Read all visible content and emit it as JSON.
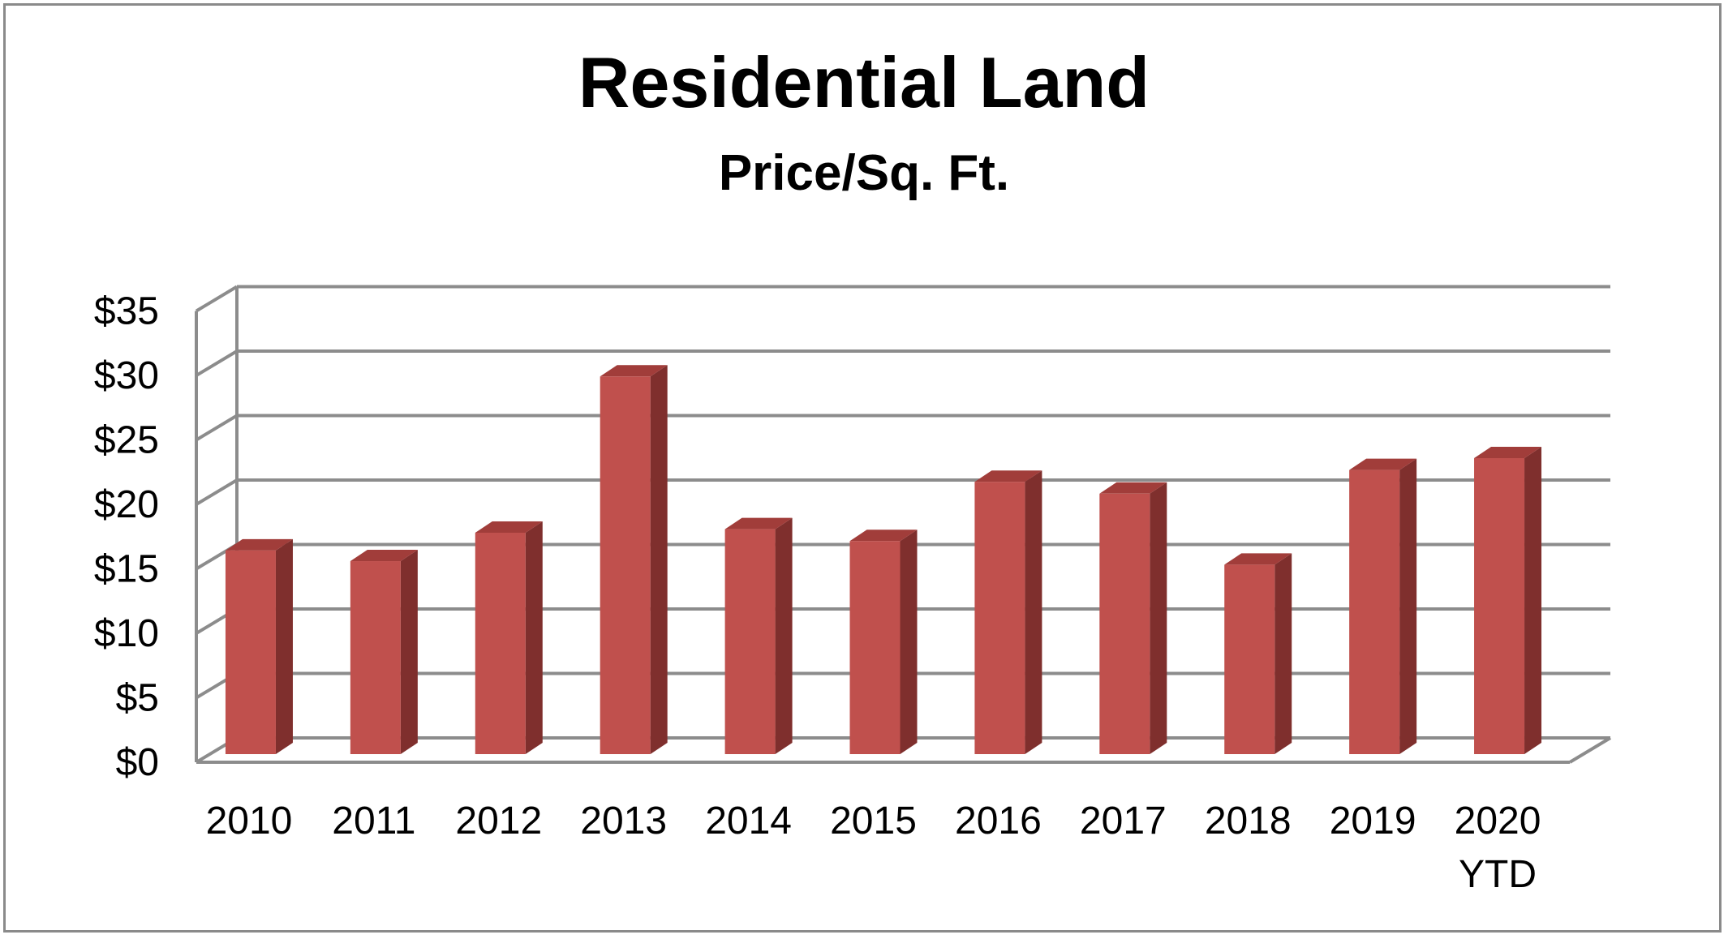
{
  "chart_data": {
    "type": "bar",
    "title": "Residential Land",
    "subtitle": "Price/Sq. Ft.",
    "xlabel": "",
    "ylabel": "",
    "categories": [
      [
        "2010"
      ],
      [
        "2011"
      ],
      [
        "2012"
      ],
      [
        "2013"
      ],
      [
        "2014"
      ],
      [
        "2015"
      ],
      [
        "2016"
      ],
      [
        "2017"
      ],
      [
        "2018"
      ],
      [
        "2019"
      ],
      [
        "2020",
        "YTD"
      ]
    ],
    "values": [
      17.2,
      16.3,
      18.7,
      31.9,
      19.0,
      18.0,
      23.0,
      22.0,
      16.0,
      24.0,
      25.0
    ],
    "ylim": [
      0,
      35
    ],
    "y_ticks": [
      "$0",
      "$5",
      "$10",
      "$15",
      "$20",
      "$25",
      "$30",
      "$35"
    ],
    "y_tick_values": [
      0,
      5,
      10,
      15,
      20,
      25,
      30,
      35
    ],
    "grid": true,
    "style": "3d-column",
    "colors": {
      "bar_front": "#c0504d",
      "bar_side": "#7f2f2d",
      "bar_top": "#a13d3a",
      "grid": "#8c8c8c"
    }
  }
}
